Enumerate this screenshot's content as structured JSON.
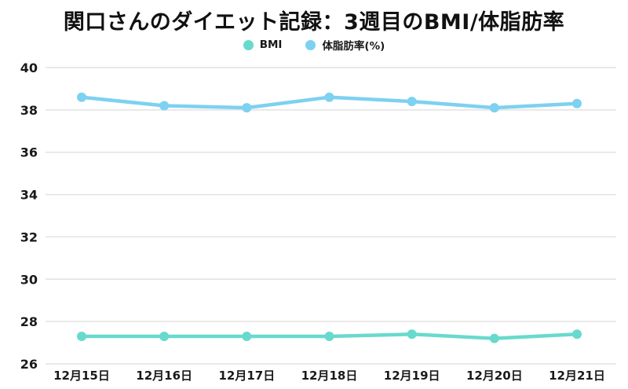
{
  "page": {
    "background": "#ffffff"
  },
  "chart_data": {
    "type": "line",
    "title": "関口さんのダイエット記録：3週目のBMI/体脂肪率",
    "categories": [
      "12月15日",
      "12月16日",
      "12月17日",
      "12月18日",
      "12月19日",
      "12月20日",
      "12月21日"
    ],
    "series": [
      {
        "name": "BMI",
        "color": "#68dacc",
        "values": [
          27.3,
          27.3,
          27.3,
          27.3,
          27.4,
          27.2,
          27.4
        ]
      },
      {
        "name": "体脂肪率(%)",
        "color": "#7dd1f1",
        "values": [
          38.6,
          38.2,
          38.1,
          38.6,
          38.4,
          38.1,
          38.3
        ]
      }
    ],
    "ylim": [
      26,
      40
    ],
    "yticks": [
      40,
      38,
      36,
      34,
      32,
      30,
      28,
      26
    ],
    "xlabel": "",
    "ylabel": "",
    "grid": "horizontal",
    "legend_position": "top",
    "gridline_color": "#e2e2e2",
    "text_color": "#1a1a1a"
  }
}
